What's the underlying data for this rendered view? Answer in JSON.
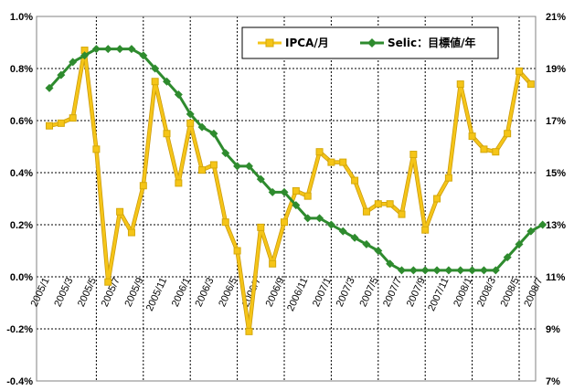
{
  "chart_data": {
    "type": "line",
    "categories": [
      "2005/1",
      "2005/2",
      "2005/3",
      "2005/4",
      "2005/5",
      "2005/6",
      "2005/7",
      "2005/8",
      "2005/9",
      "2005/10",
      "2005/11",
      "2005/12",
      "2006/1",
      "2006/2",
      "2006/3",
      "2006/4",
      "2006/5",
      "2006/6",
      "2006/7",
      "2006/8",
      "2006/9",
      "2006/10",
      "2006/11",
      "2006/12",
      "2007/1",
      "2007/2",
      "2007/3",
      "2007/4",
      "2007/5",
      "2007/6",
      "2007/7",
      "2007/8",
      "2007/9",
      "2007/10",
      "2007/11",
      "2007/12",
      "2008/1",
      "2008/2",
      "2008/3",
      "2008/4",
      "2008/5",
      "2008/6",
      "2008/7"
    ],
    "x_tick_labels": [
      "2005/1",
      "2005/3",
      "2005/5",
      "2005/7",
      "2005/9",
      "2005/11",
      "2006/1",
      "2006/3",
      "2006/5",
      "2006/7",
      "2006/9",
      "2006/11",
      "2007/1",
      "2007/3",
      "2007/5",
      "2007/7",
      "2007/9",
      "2007/11",
      "2008/1",
      "2008/3",
      "2008/5",
      "2008/7"
    ],
    "y_left": {
      "ticks": [
        "-0.4%",
        "-0.2%",
        "0.0%",
        "0.2%",
        "0.4%",
        "0.6%",
        "0.8%",
        "1.0%"
      ],
      "range": [
        -0.4,
        1.0
      ]
    },
    "y_right": {
      "ticks": [
        "7%",
        "9%",
        "11%",
        "13%",
        "15%",
        "17%",
        "19%",
        "21%"
      ],
      "range": [
        7,
        21
      ]
    },
    "grid": true,
    "legend_position": "top-right",
    "series": [
      {
        "name": "IPCA/月",
        "axis": "left",
        "color": "#f5c518",
        "marker": "square",
        "values": [
          0.58,
          0.59,
          0.61,
          0.87,
          0.49,
          -0.02,
          0.25,
          0.17,
          0.35,
          0.75,
          0.55,
          0.36,
          0.59,
          0.41,
          0.43,
          0.21,
          0.1,
          -0.21,
          0.19,
          0.05,
          0.21,
          0.33,
          0.31,
          0.48,
          0.44,
          0.44,
          0.37,
          0.25,
          0.28,
          0.28,
          0.24,
          0.47,
          0.18,
          0.3,
          0.38,
          0.74,
          0.54,
          0.49,
          0.48,
          0.55,
          0.79,
          0.74,
          null
        ]
      },
      {
        "name": "Selic：目標値/年",
        "axis": "right",
        "color": "#2e8b2e",
        "marker": "diamond",
        "values": [
          18.25,
          18.75,
          19.25,
          19.5,
          19.75,
          19.75,
          19.75,
          19.75,
          19.5,
          19.0,
          18.5,
          18.0,
          17.25,
          16.75,
          16.5,
          15.75,
          15.25,
          15.25,
          14.75,
          14.25,
          14.25,
          13.75,
          13.25,
          13.25,
          13.0,
          12.75,
          12.5,
          12.25,
          12.0,
          11.5,
          11.25,
          11.25,
          11.25,
          11.25,
          11.25,
          11.25,
          11.25,
          11.25,
          11.25,
          11.75,
          12.25,
          12.75,
          13.0
        ]
      }
    ]
  }
}
